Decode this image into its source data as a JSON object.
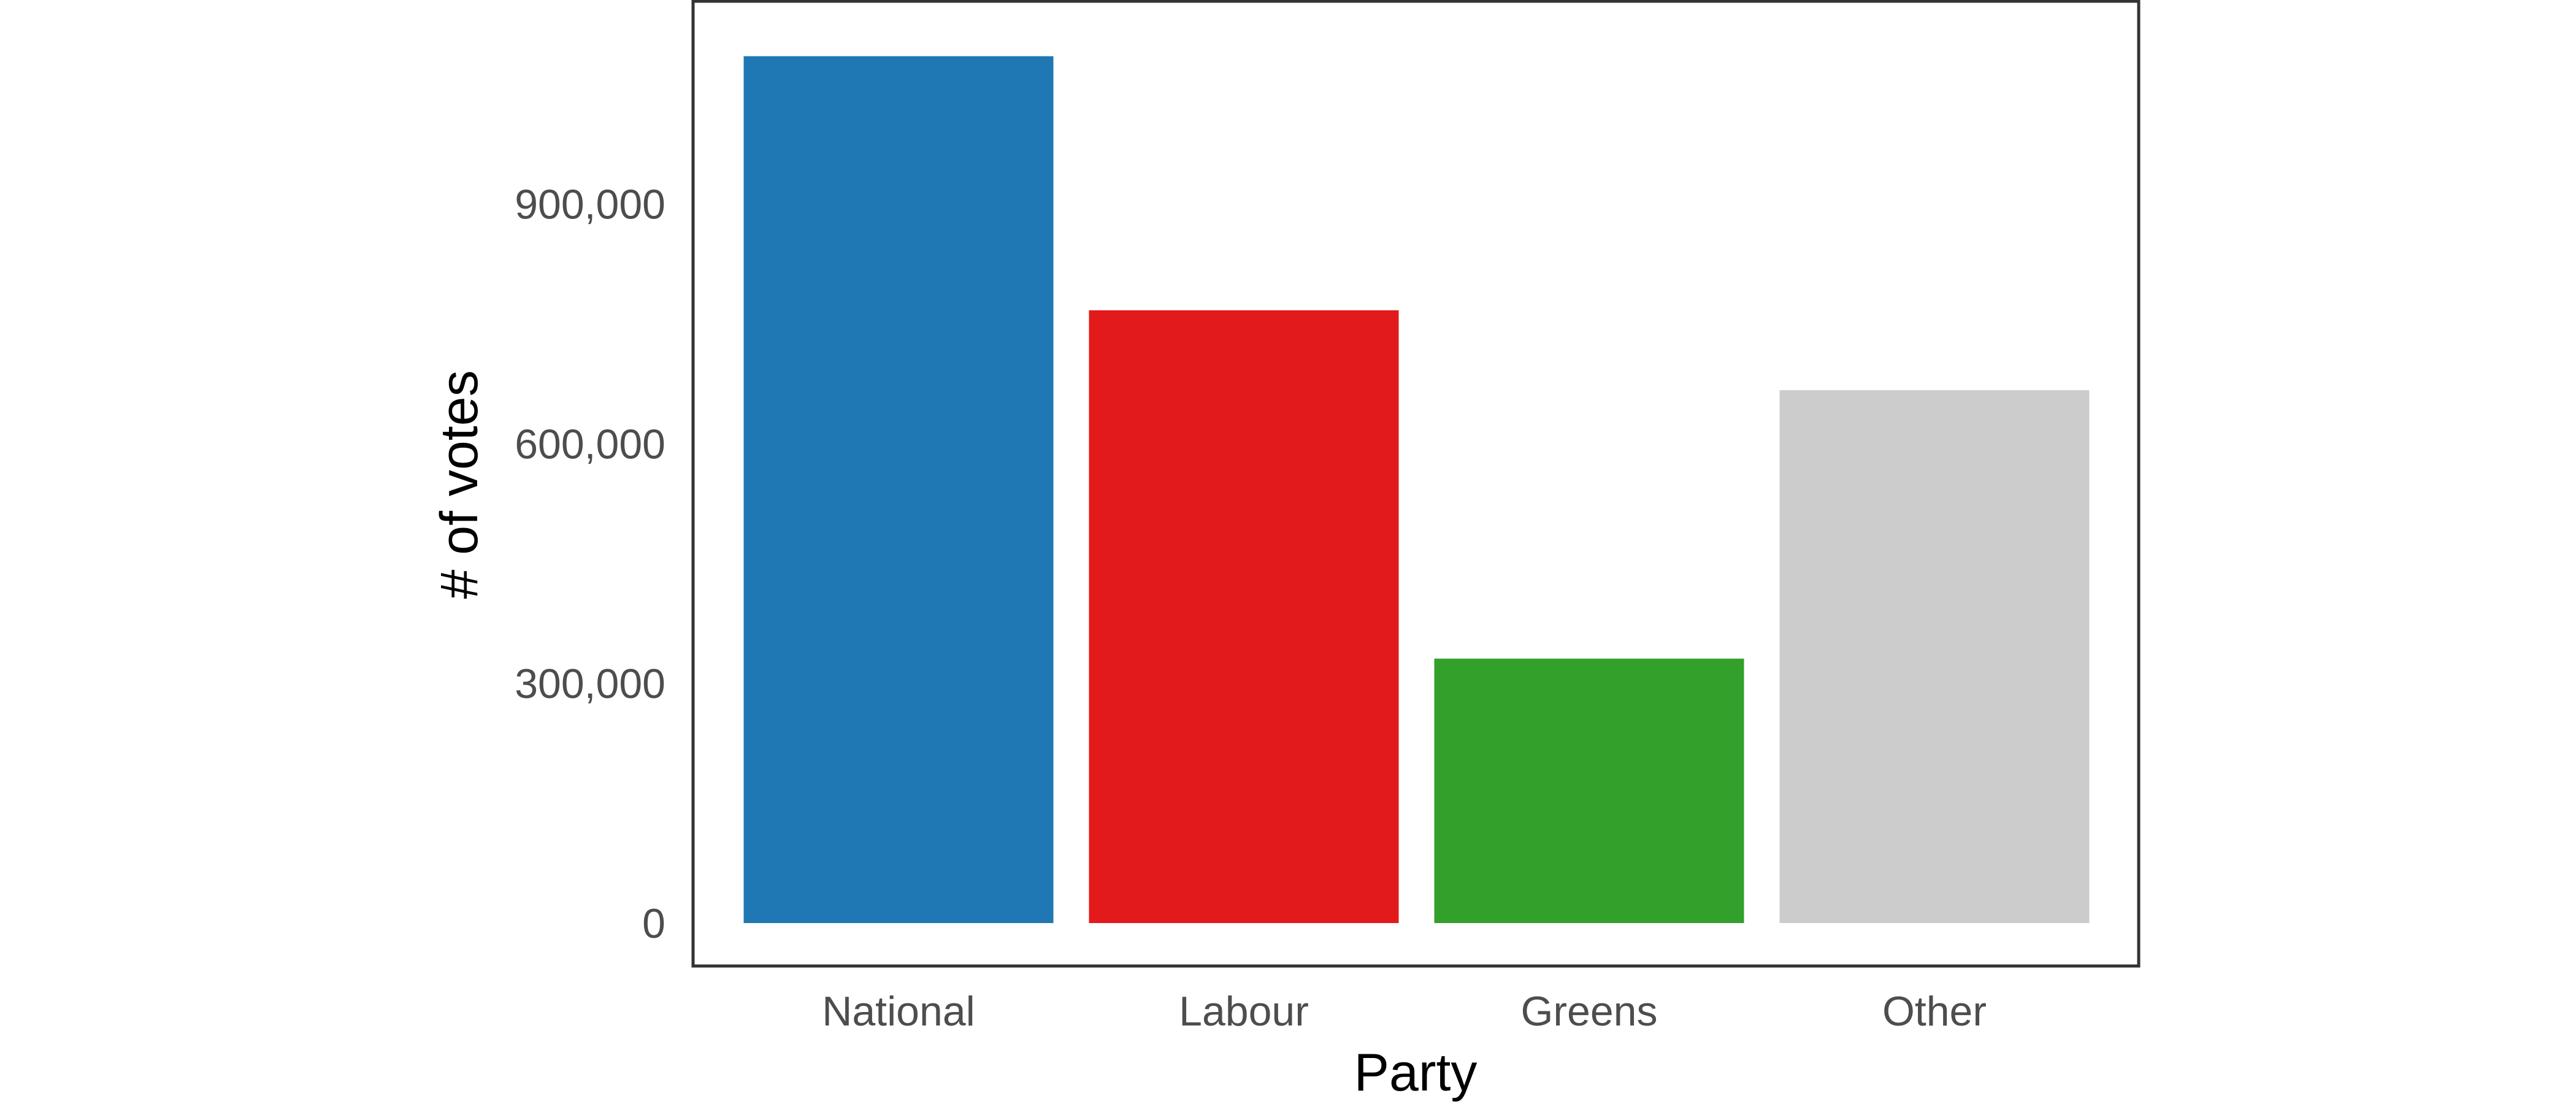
{
  "chart_data": {
    "type": "bar",
    "categories": [
      "National",
      "Labour",
      "Greens",
      "Other"
    ],
    "values": [
      1085000,
      767000,
      331000,
      667000
    ],
    "colors": [
      "#1f78b4",
      "#e31a1c",
      "#33a02c",
      "#cccccc"
    ],
    "title": "",
    "xlabel": "Party",
    "ylabel": "# of votes",
    "ylim": [
      0,
      1140000
    ],
    "yticks": [
      0,
      300000,
      600000,
      900000
    ],
    "ytick_labels": [
      "0",
      "300,000",
      "600,000",
      "900,000"
    ],
    "grid": false,
    "legend": "none"
  }
}
